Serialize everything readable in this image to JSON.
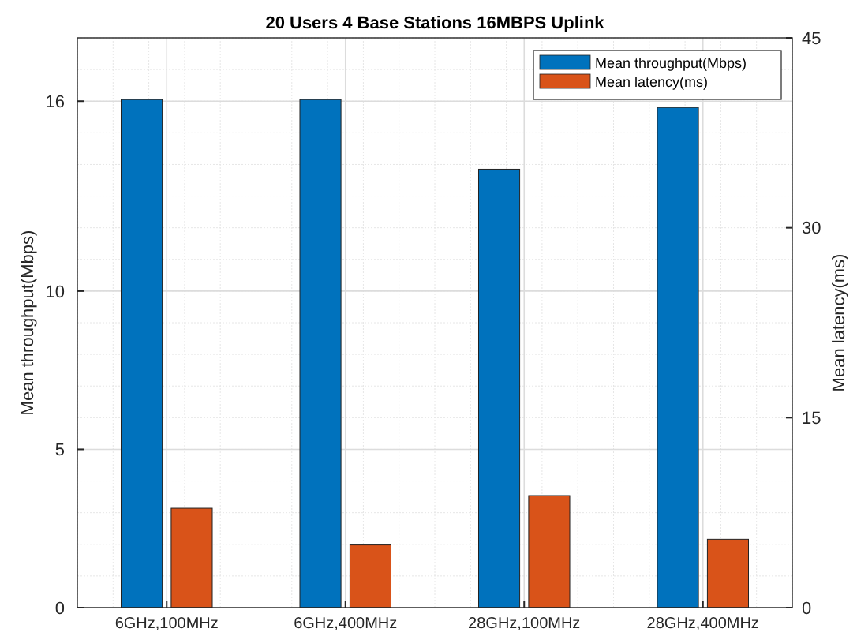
{
  "chart_data": {
    "type": "bar",
    "title": "20 Users 4 Base Stations 16MBPS Uplink",
    "ylabel": "Mean throughput(Mbps)",
    "y2label": "Mean latency(ms)",
    "categories": [
      "6GHz,100MHz",
      "6GHz,400MHz",
      "28GHz,100MHz",
      "28GHz,400MHz"
    ],
    "series": [
      {
        "name": "Mean throughput(Mbps)",
        "color": "#0072bd",
        "values": [
          16.05,
          16.05,
          13.85,
          15.8
        ]
      },
      {
        "name": "Mean latency(ms)",
        "color": "#d95319",
        "values": [
          7.85,
          4.95,
          8.85,
          5.4
        ],
        "axis": "y2"
      }
    ],
    "ylim": [
      0,
      18
    ],
    "yticks": [
      0,
      5,
      10,
      16
    ],
    "y2lim": [
      0,
      45
    ],
    "y2ticks": [
      0,
      15,
      30,
      45
    ],
    "grid": true,
    "legend": "top right"
  }
}
